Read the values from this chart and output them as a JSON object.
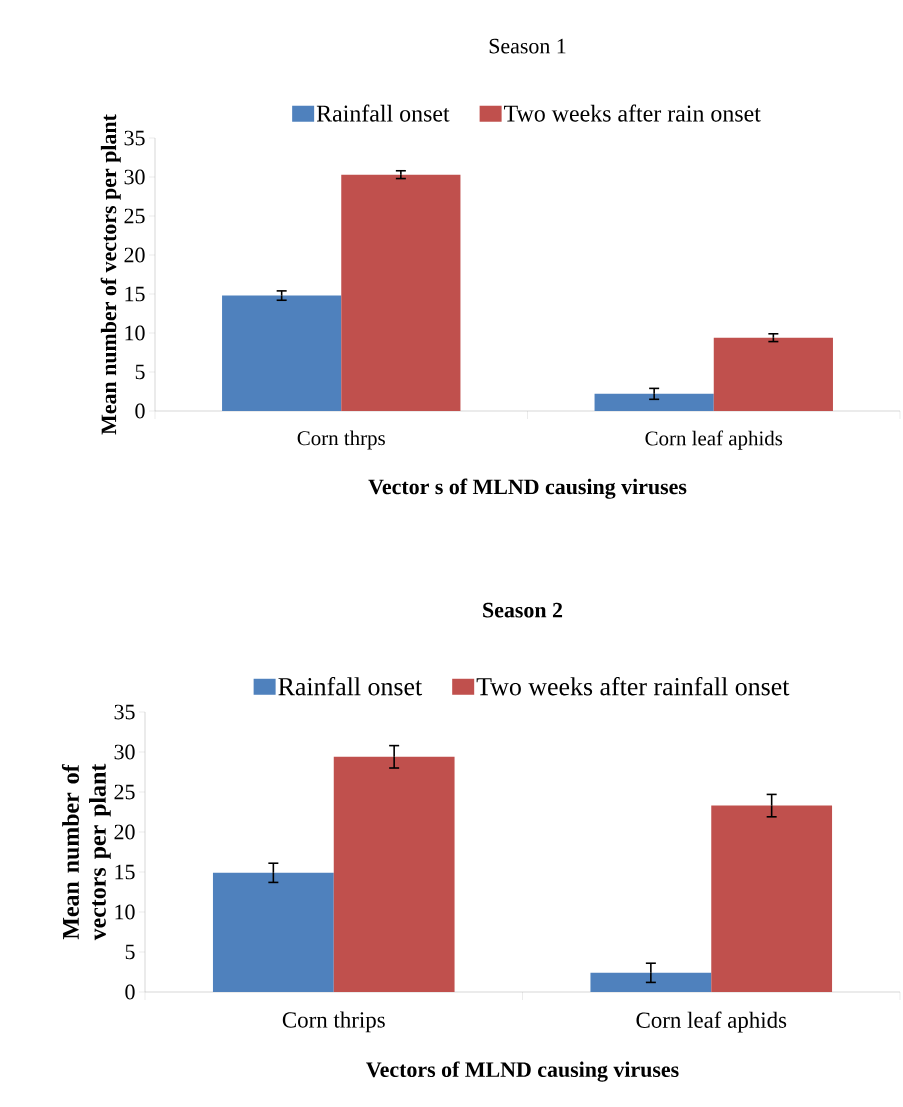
{
  "chart_data": [
    {
      "type": "bar",
      "title": "Season 1",
      "xlabel": "Vector s of MLND causing viruses",
      "ylabel": "Mean number of vectors per plant",
      "categories": [
        "Corn thrps",
        "Corn leaf aphids"
      ],
      "series": [
        {
          "name": "Rainfall onset",
          "color": "#4f81bd",
          "values": [
            14.8,
            2.2
          ],
          "errors": [
            0.6,
            0.7
          ]
        },
        {
          "name": "Two weeks after rain onset",
          "color": "#c0504d",
          "values": [
            30.3,
            9.4
          ],
          "errors": [
            0.5,
            0.5
          ]
        }
      ],
      "ylim": [
        0,
        35
      ],
      "yticks": [
        0,
        5,
        10,
        15,
        20,
        25,
        30,
        35
      ],
      "legend": "top"
    },
    {
      "type": "bar",
      "title": "**Season 2**",
      "xlabel": "Vectors of MLND causing viruses",
      "ylabel": "Mean number of vectors per plant",
      "categories": [
        "Corn thrips",
        "Corn leaf aphids"
      ],
      "series": [
        {
          "name": "Rainfall onset",
          "color": "#4f81bd",
          "values": [
            14.9,
            2.4
          ],
          "errors": [
            1.2,
            1.2
          ]
        },
        {
          "name": "Two weeks after rainfall onset",
          "color": "#c0504d",
          "values": [
            29.4,
            23.3
          ],
          "errors": [
            1.4,
            1.4
          ]
        }
      ],
      "ylim": [
        0,
        35
      ],
      "yticks": [
        0,
        5,
        10,
        15,
        20,
        25,
        30,
        35
      ],
      "legend": "top"
    }
  ]
}
